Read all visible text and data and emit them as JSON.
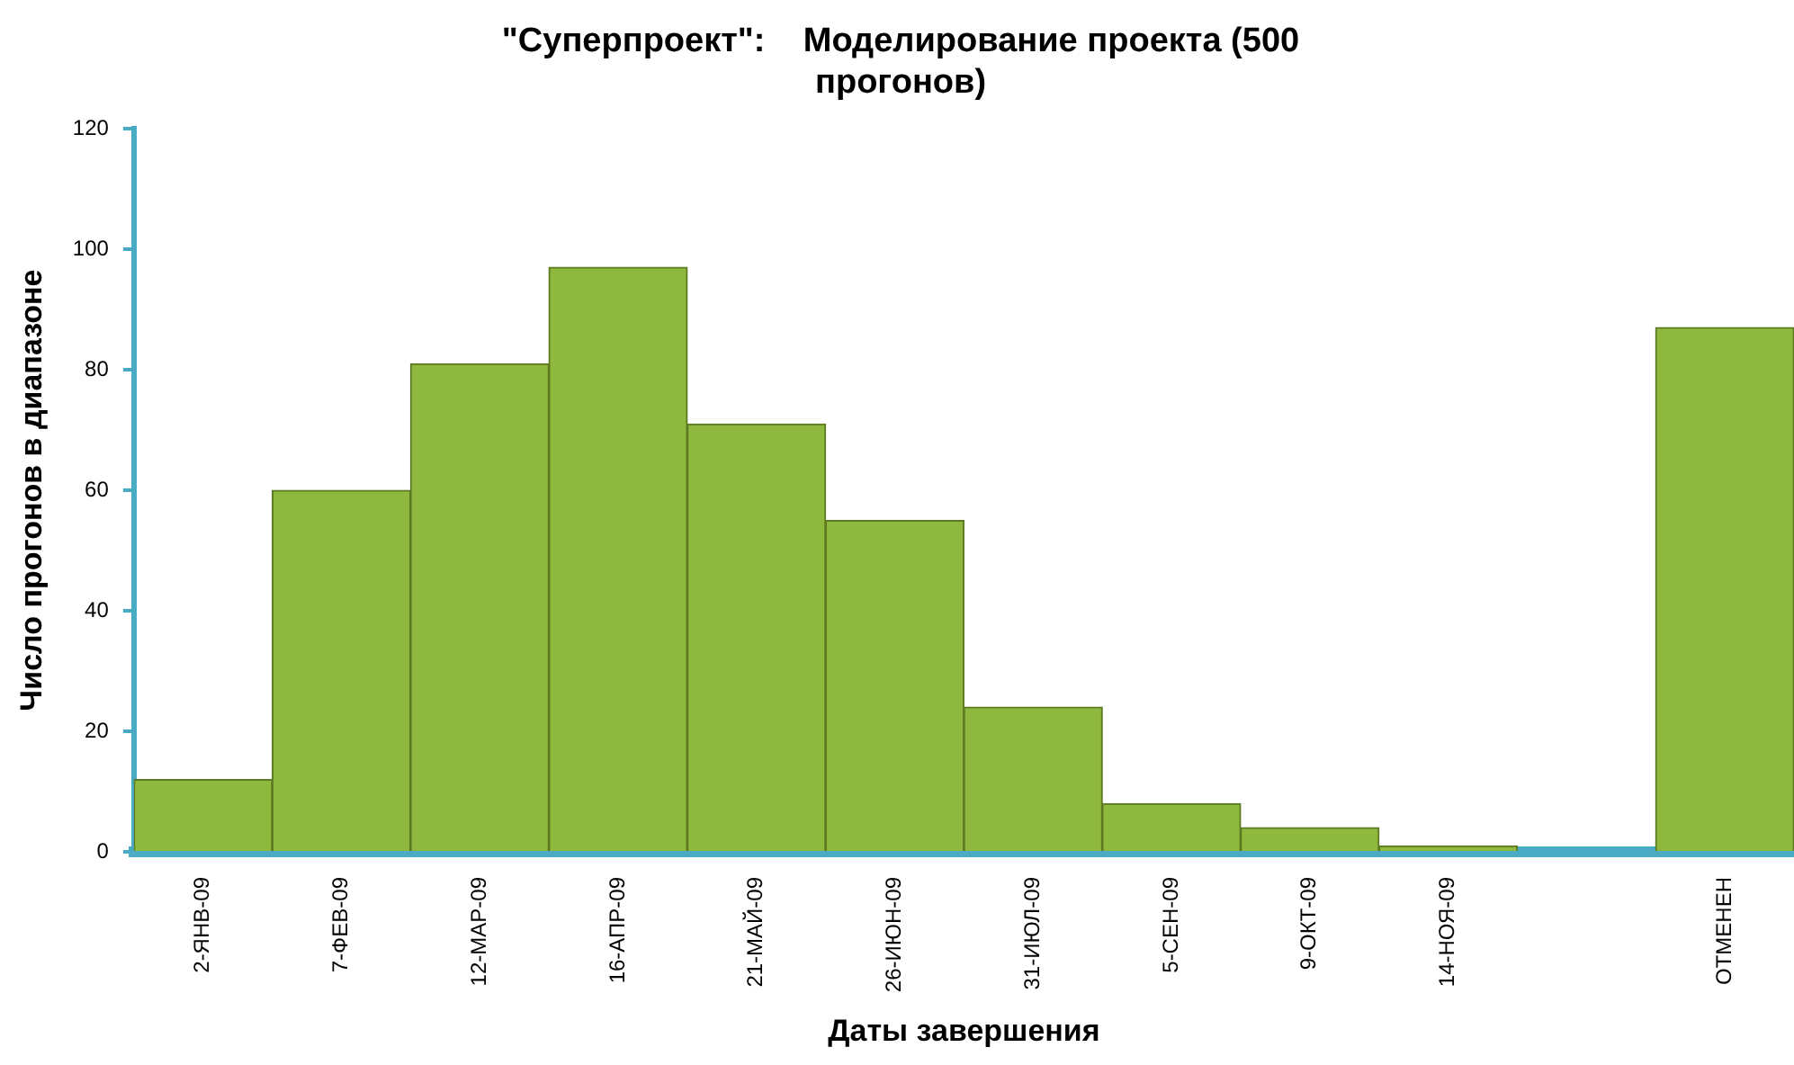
{
  "chart_data": {
    "type": "bar",
    "title": "\"Суперпроект\":    Моделирование проекта (500\nпрогонов)",
    "xlabel": "Даты завершения",
    "ylabel": "Число прогонов в диапазоне",
    "categories": [
      "2-ЯНВ-09",
      "7-ФЕВ-09",
      "12-МАР-09",
      "16-АПР-09",
      "21-МАЙ-09",
      "26-ИЮН-09",
      "31-ИЮЛ-09",
      "5-СЕН-09",
      "9-ОКТ-09",
      "14-НОЯ-09",
      null,
      "ОТМЕНЕН"
    ],
    "values": [
      12,
      60,
      81,
      97,
      71,
      55,
      24,
      8,
      4,
      1,
      0,
      87
    ],
    "color": "#8fb83e",
    "ylim": [
      0,
      120
    ],
    "yticks": [
      0,
      20,
      40,
      60,
      80,
      100,
      120
    ],
    "grid": false,
    "legend": false
  }
}
